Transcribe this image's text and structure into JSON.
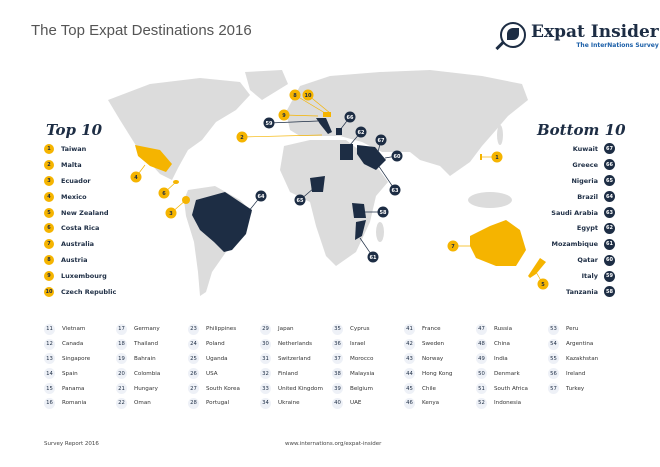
{
  "header": {
    "title": "The Top Expat Destinations 2016",
    "logo_name": "Expat Insider",
    "logo_subtitle": "The InterNations Survey"
  },
  "colors": {
    "top": "#f5b400",
    "bottom": "#1d2d44",
    "land": "#dcdcdc"
  },
  "top10": {
    "title": "Top 10",
    "items": [
      {
        "rank": "1",
        "country": "Taiwan"
      },
      {
        "rank": "2",
        "country": "Malta"
      },
      {
        "rank": "3",
        "country": "Ecuador"
      },
      {
        "rank": "4",
        "country": "Mexico"
      },
      {
        "rank": "5",
        "country": "New Zealand"
      },
      {
        "rank": "6",
        "country": "Costa Rica"
      },
      {
        "rank": "7",
        "country": "Australia"
      },
      {
        "rank": "8",
        "country": "Austria"
      },
      {
        "rank": "9",
        "country": "Luxembourg"
      },
      {
        "rank": "10",
        "country": "Czech Republic"
      }
    ]
  },
  "bottom10": {
    "title": "Bottom 10",
    "items": [
      {
        "rank": "67",
        "country": "Kuwait"
      },
      {
        "rank": "66",
        "country": "Greece"
      },
      {
        "rank": "65",
        "country": "Nigeria"
      },
      {
        "rank": "64",
        "country": "Brazil"
      },
      {
        "rank": "63",
        "country": "Saudi Arabia"
      },
      {
        "rank": "62",
        "country": "Egypt"
      },
      {
        "rank": "61",
        "country": "Mozambique"
      },
      {
        "rank": "60",
        "country": "Qatar"
      },
      {
        "rank": "59",
        "country": "Italy"
      },
      {
        "rank": "58",
        "country": "Tanzania"
      }
    ]
  },
  "ranking": [
    {
      "rank": "11",
      "country": "Vietnam"
    },
    {
      "rank": "12",
      "country": "Canada"
    },
    {
      "rank": "13",
      "country": "Singapore"
    },
    {
      "rank": "14",
      "country": "Spain"
    },
    {
      "rank": "15",
      "country": "Panama"
    },
    {
      "rank": "16",
      "country": "Romania"
    },
    {
      "rank": "17",
      "country": "Germany"
    },
    {
      "rank": "18",
      "country": "Thailand"
    },
    {
      "rank": "19",
      "country": "Bahrain"
    },
    {
      "rank": "20",
      "country": "Colombia"
    },
    {
      "rank": "21",
      "country": "Hungary"
    },
    {
      "rank": "22",
      "country": "Oman"
    },
    {
      "rank": "23",
      "country": "Philippines"
    },
    {
      "rank": "24",
      "country": "Poland"
    },
    {
      "rank": "25",
      "country": "Uganda"
    },
    {
      "rank": "26",
      "country": "USA"
    },
    {
      "rank": "27",
      "country": "South Korea"
    },
    {
      "rank": "28",
      "country": "Portugal"
    },
    {
      "rank": "29",
      "country": "Japan"
    },
    {
      "rank": "30",
      "country": "Netherlands"
    },
    {
      "rank": "31",
      "country": "Switzerland"
    },
    {
      "rank": "32",
      "country": "Finland"
    },
    {
      "rank": "33",
      "country": "United Kingdom"
    },
    {
      "rank": "34",
      "country": "Ukraine"
    },
    {
      "rank": "35",
      "country": "Cyprus"
    },
    {
      "rank": "36",
      "country": "Israel"
    },
    {
      "rank": "37",
      "country": "Morocco"
    },
    {
      "rank": "38",
      "country": "Malaysia"
    },
    {
      "rank": "39",
      "country": "Belgium"
    },
    {
      "rank": "40",
      "country": "UAE"
    },
    {
      "rank": "41",
      "country": "France"
    },
    {
      "rank": "42",
      "country": "Sweden"
    },
    {
      "rank": "43",
      "country": "Norway"
    },
    {
      "rank": "44",
      "country": "Hong Kong"
    },
    {
      "rank": "45",
      "country": "Chile"
    },
    {
      "rank": "46",
      "country": "Kenya"
    },
    {
      "rank": "47",
      "country": "Russia"
    },
    {
      "rank": "48",
      "country": "China"
    },
    {
      "rank": "49",
      "country": "India"
    },
    {
      "rank": "50",
      "country": "Denmark"
    },
    {
      "rank": "51",
      "country": "South Africa"
    },
    {
      "rank": "52",
      "country": "Indonesia"
    },
    {
      "rank": "53",
      "country": "Peru"
    },
    {
      "rank": "54",
      "country": "Argentina"
    },
    {
      "rank": "55",
      "country": "Kazakhstan"
    },
    {
      "rank": "56",
      "country": "Ireland"
    },
    {
      "rank": "57",
      "country": "Turkey"
    }
  ],
  "footer": {
    "left": "Survey Report 2016",
    "center": "www.internations.org/expat-insider"
  }
}
